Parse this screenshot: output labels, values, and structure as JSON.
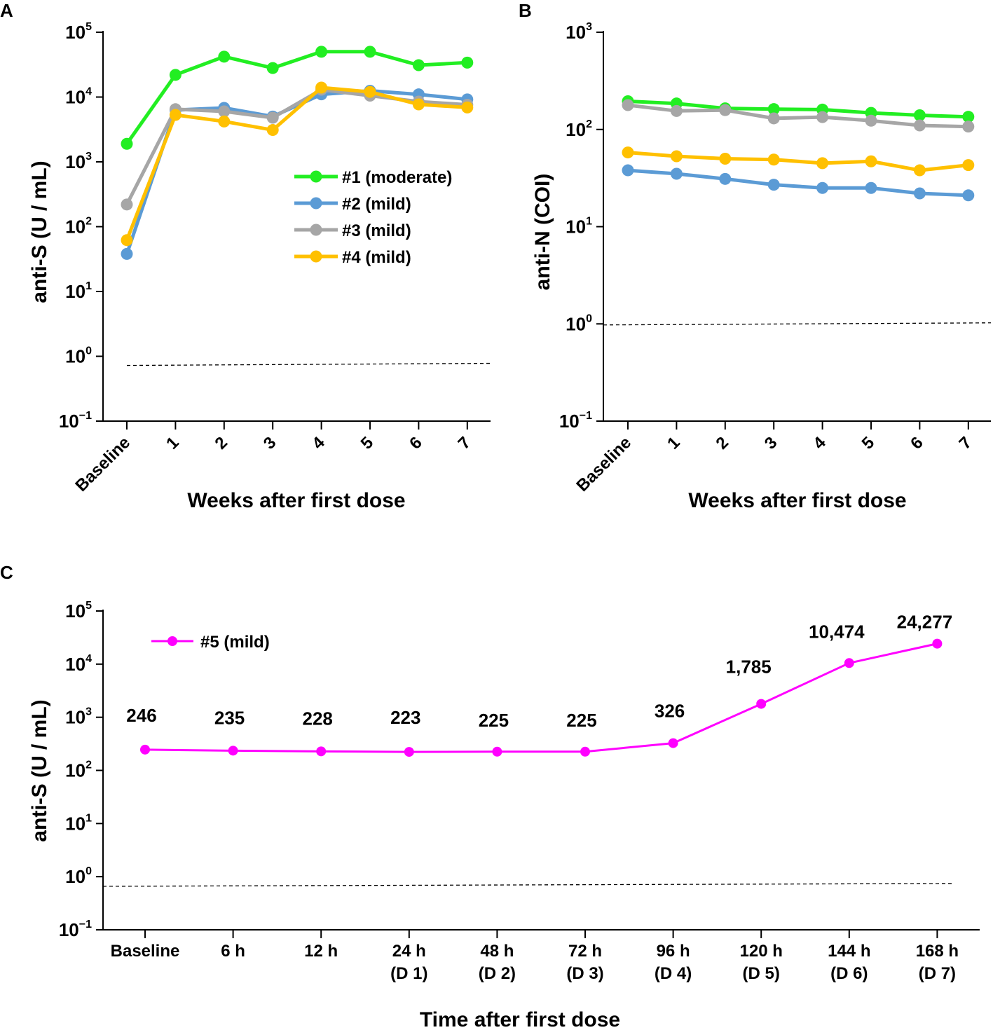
{
  "chart_data": [
    {
      "panel": "A",
      "type": "line",
      "yscale": "log",
      "ylim_exp": [
        -1,
        5
      ],
      "ylabel": "anti-S (U / mL)",
      "xlabel": "Weeks after first dose",
      "categories": [
        "Baseline",
        "1",
        "2",
        "3",
        "4",
        "5",
        "6",
        "7"
      ],
      "reference_line": 0.75,
      "series": [
        {
          "name": "#1 (moderate)",
          "color": "#22ee22",
          "values": [
            1900,
            22000,
            42000,
            28000,
            50000,
            50000,
            31000,
            34000
          ]
        },
        {
          "name": "#2 (mild)",
          "color": "#5b9bd5",
          "values": [
            38,
            6300,
            6800,
            5000,
            11000,
            12500,
            11000,
            9200
          ]
        },
        {
          "name": "#3 (mild)",
          "color": "#a6a6a6",
          "values": [
            220,
            6500,
            6000,
            4800,
            13000,
            10500,
            8500,
            7600
          ]
        },
        {
          "name": "#4  (mild)",
          "color": "#ffc000",
          "values": [
            62,
            5300,
            4200,
            3100,
            14000,
            12000,
            7700,
            6900
          ]
        }
      ]
    },
    {
      "panel": "B",
      "type": "line",
      "yscale": "log",
      "ylim_exp": [
        -1,
        3
      ],
      "ylabel": "anti-N (COI)",
      "xlabel": "Weeks after first dose",
      "categories": [
        "Baseline",
        "1",
        "2",
        "3",
        "4",
        "5",
        "6",
        "7"
      ],
      "reference_line": 1.0,
      "series": [
        {
          "name": "#1 (moderate)",
          "color": "#22ee22",
          "values": [
            195,
            185,
            165,
            162,
            160,
            148,
            140,
            135
          ]
        },
        {
          "name": "#2 (mild)",
          "color": "#5b9bd5",
          "values": [
            38,
            35,
            31,
            27,
            25,
            25,
            22,
            21
          ]
        },
        {
          "name": "#3 (mild)",
          "color": "#a6a6a6",
          "values": [
            178,
            155,
            158,
            130,
            134,
            123,
            110,
            107
          ]
        },
        {
          "name": "#4  (mild)",
          "color": "#ffc000",
          "values": [
            58,
            53,
            50,
            49,
            45,
            47,
            38,
            43
          ]
        }
      ]
    },
    {
      "panel": "C",
      "type": "line",
      "yscale": "log",
      "ylim_exp": [
        -1,
        5
      ],
      "ylabel": "anti-S (U / mL)",
      "xlabel": "Time after first dose",
      "categories": [
        "Baseline",
        "6 h",
        "12 h",
        "24 h",
        "48 h",
        "72 h",
        "96 h",
        "120 h",
        "144 h",
        "168 h"
      ],
      "subcategories": [
        "",
        "",
        "",
        "(D 1)",
        "(D 2)",
        "(D 3)",
        "(D 4)",
        "(D 5)",
        "(D 6)",
        "(D 7)"
      ],
      "reference_line": 0.7,
      "series": [
        {
          "name": "#5 (mild)",
          "color": "#ff00ff",
          "values": [
            246,
            235,
            228,
            223,
            225,
            225,
            326,
            1785,
            10474,
            24277
          ]
        }
      ],
      "value_labels": [
        "246",
        "235",
        "228",
        "223",
        "225",
        "225",
        "326",
        "1,785",
        "10,474",
        "24,277"
      ]
    }
  ]
}
